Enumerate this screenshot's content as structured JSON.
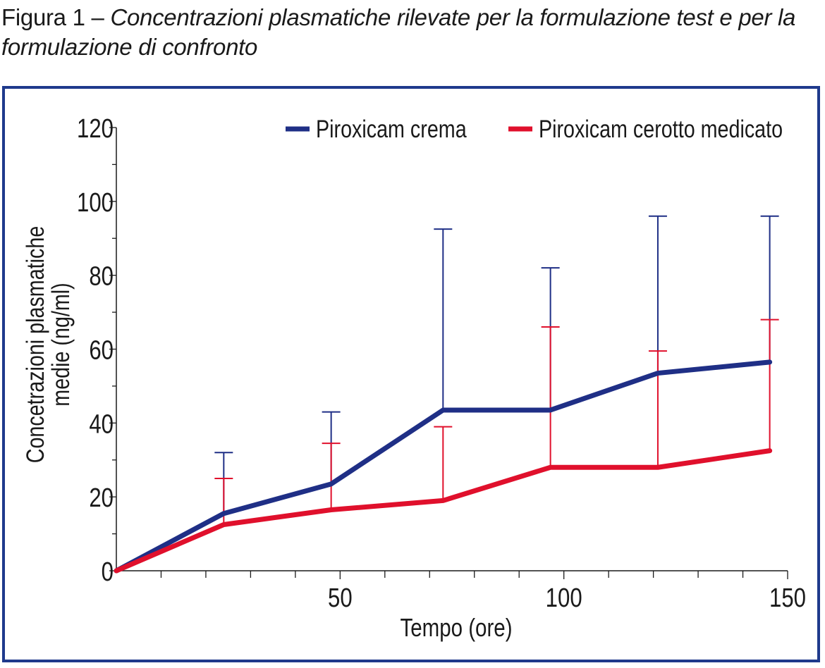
{
  "caption": {
    "label": "Figura 1 – ",
    "text": "Concentrazioni plasmatiche rilevate per la formulazione test e per la formulazione di confronto"
  },
  "colors": {
    "frame": "#1f3a8c",
    "series_blue": "#1f2f86",
    "series_red": "#e0102c",
    "axis": "#1a1a1a"
  },
  "chart_data": {
    "type": "line",
    "title": "",
    "xlabel": "Tempo (ore)",
    "ylabel_lines": [
      "Concetrazioni plasmatiche",
      "medie (ng/ml)"
    ],
    "xlim": [
      0,
      150
    ],
    "ylim": [
      0,
      120
    ],
    "x_ticks": [
      50,
      100,
      150
    ],
    "x_minor_step": 10,
    "y_ticks": [
      0,
      20,
      40,
      60,
      80,
      100,
      120
    ],
    "y_minor_step": 10,
    "grid": false,
    "legend_position": "top",
    "series": [
      {
        "name": "Piroxicam crema",
        "color": "#1f2f86",
        "points": [
          {
            "x": 0,
            "y": 0
          },
          {
            "x": 24,
            "y": 15.5,
            "err_upper": 32
          },
          {
            "x": 48,
            "y": 23.5,
            "err_upper": 43
          },
          {
            "x": 73,
            "y": 43.5,
            "err_upper": 92.5
          },
          {
            "x": 97,
            "y": 43.5,
            "err_upper": 82
          },
          {
            "x": 121,
            "y": 53.5,
            "err_upper": 96
          },
          {
            "x": 146,
            "y": 56.5,
            "err_upper": 96
          }
        ]
      },
      {
        "name": "Piroxicam cerotto medicato",
        "color": "#e0102c",
        "points": [
          {
            "x": 0,
            "y": 0
          },
          {
            "x": 24,
            "y": 12.5,
            "err_upper": 25
          },
          {
            "x": 48,
            "y": 16.5,
            "err_upper": 34.5
          },
          {
            "x": 73,
            "y": 19,
            "err_upper": 39
          },
          {
            "x": 97,
            "y": 28,
            "err_upper": 66
          },
          {
            "x": 121,
            "y": 28,
            "err_upper": 59.5
          },
          {
            "x": 146,
            "y": 32.5,
            "err_upper": 68
          }
        ]
      }
    ]
  }
}
